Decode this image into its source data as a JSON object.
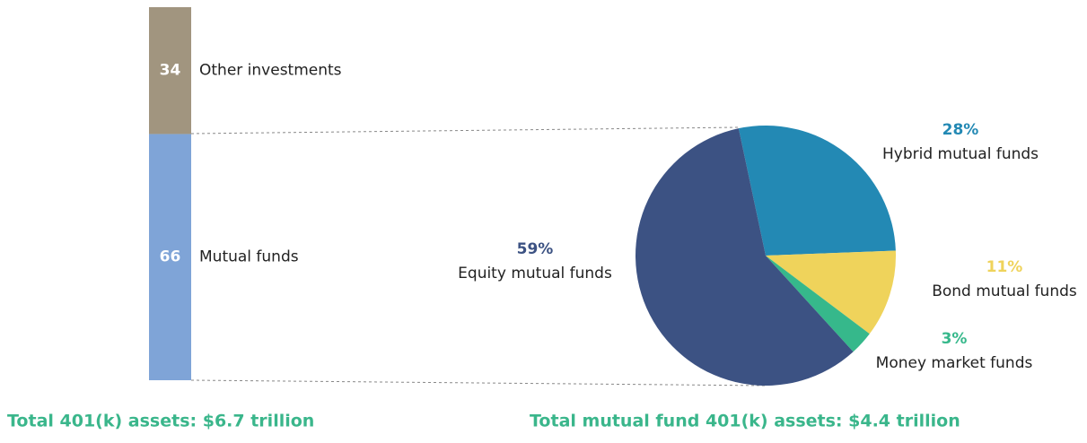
{
  "chart_data": [
    {
      "type": "stacked-bar",
      "series": [
        {
          "name": "Mutual funds",
          "color": "#7fa4d7",
          "values": [
            66
          ]
        },
        {
          "name": "Other investments",
          "color": "#a1957f",
          "values": [
            34
          ]
        }
      ],
      "caption": "Total 401(k) assets: $6.7 trillion"
    },
    {
      "type": "pie",
      "categories": [
        "Hybrid mutual funds",
        "Bond mutual funds",
        "Money market funds",
        "Equity mutual funds"
      ],
      "values": [
        28,
        11,
        3,
        59
      ],
      "value_labels": [
        "28%",
        "11%",
        "3%",
        "59%"
      ],
      "colors": [
        "#2389b4",
        "#efd35b",
        "#36b88b",
        "#3c5283"
      ],
      "caption": "Total mutual fund 401(k) assets: $4.4 trillion"
    }
  ]
}
